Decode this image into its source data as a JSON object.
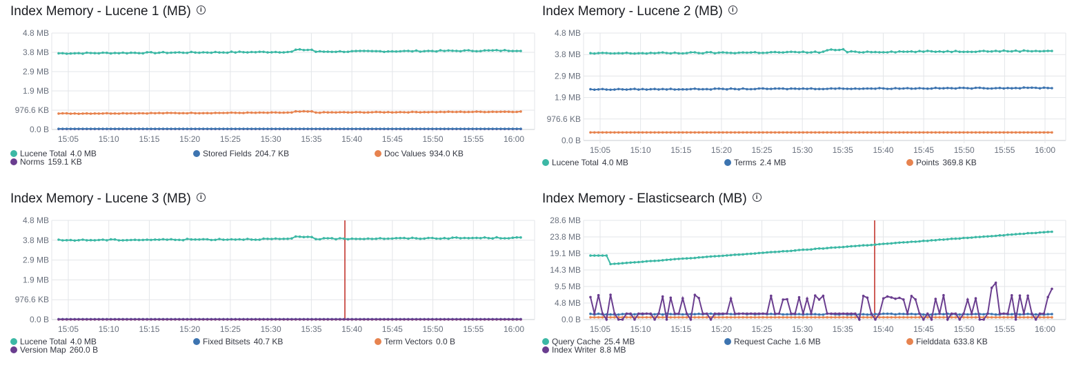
{
  "panels": [
    {
      "id": "lucene-1",
      "title": "Index Memory - Lucene 1 (MB)",
      "info_icon": "info-icon",
      "y_ticks": [
        "4.8 MB",
        "3.8 MB",
        "2.9 MB",
        "1.9 MB",
        "976.6 KB",
        "0.0 B"
      ],
      "x_ticks": [
        "15:05",
        "15:10",
        "15:15",
        "15:20",
        "15:25",
        "15:30",
        "15:35",
        "15:40",
        "15:45",
        "15:50",
        "15:55",
        "16:00"
      ],
      "legend": [
        {
          "label": "Lucene Total",
          "value": "4.0 MB",
          "color": "#3cb8a5"
        },
        {
          "label": "Stored Fields",
          "value": "204.7 KB",
          "color": "#3d74b0"
        },
        {
          "label": "Doc Values",
          "value": "934.0 KB",
          "color": "#e7834f"
        },
        {
          "label": "Norms",
          "value": "159.1 KB",
          "color": "#6a3d8f"
        }
      ]
    },
    {
      "id": "lucene-2",
      "title": "Index Memory - Lucene 2 (MB)",
      "info_icon": "info-icon",
      "y_ticks": [
        "4.8 MB",
        "3.8 MB",
        "2.9 MB",
        "1.9 MB",
        "976.6 KB",
        "0.0 B"
      ],
      "x_ticks": [
        "15:05",
        "15:10",
        "15:15",
        "15:20",
        "15:25",
        "15:30",
        "15:35",
        "15:40",
        "15:45",
        "15:50",
        "15:55",
        "16:00"
      ],
      "legend": [
        {
          "label": "Lucene Total",
          "value": "4.0 MB",
          "color": "#3cb8a5"
        },
        {
          "label": "Terms",
          "value": "2.4 MB",
          "color": "#3d74b0"
        },
        {
          "label": "Points",
          "value": "369.8 KB",
          "color": "#e7834f"
        }
      ]
    },
    {
      "id": "lucene-3",
      "title": "Index Memory - Lucene 3 (MB)",
      "info_icon": "info-icon",
      "y_ticks": [
        "4.8 MB",
        "3.8 MB",
        "2.9 MB",
        "1.9 MB",
        "976.6 KB",
        "0.0 B"
      ],
      "x_ticks": [
        "15:05",
        "15:10",
        "15:15",
        "15:20",
        "15:25",
        "15:30",
        "15:35",
        "15:40",
        "15:45",
        "15:50",
        "15:55",
        "16:00"
      ],
      "legend": [
        {
          "label": "Lucene Total",
          "value": "4.0 MB",
          "color": "#3cb8a5"
        },
        {
          "label": "Fixed Bitsets",
          "value": "40.7 KB",
          "color": "#3d74b0"
        },
        {
          "label": "Term Vectors",
          "value": "0.0 B",
          "color": "#e7834f"
        },
        {
          "label": "Version Map",
          "value": "260.0 B",
          "color": "#6a3d8f"
        }
      ]
    },
    {
      "id": "elasticsearch",
      "title": "Index Memory - Elasticsearch (MB)",
      "info_icon": "info-icon",
      "y_ticks": [
        "28.6 MB",
        "23.8 MB",
        "19.1 MB",
        "14.3 MB",
        "9.5 MB",
        "4.8 MB",
        "0.0 B"
      ],
      "x_ticks": [
        "15:05",
        "15:10",
        "15:15",
        "15:20",
        "15:25",
        "15:30",
        "15:35",
        "15:40",
        "15:45",
        "15:50",
        "15:55",
        "16:00"
      ],
      "legend": [
        {
          "label": "Query Cache",
          "value": "25.4 MB",
          "color": "#3cb8a5"
        },
        {
          "label": "Request Cache",
          "value": "1.6 MB",
          "color": "#3d74b0"
        },
        {
          "label": "Fielddata",
          "value": "633.8 KB",
          "color": "#e7834f"
        },
        {
          "label": "Index Writer",
          "value": "8.8 MB",
          "color": "#6a3d8f"
        }
      ]
    }
  ],
  "colors": {
    "grid": "#e3e5e8",
    "axis_text": "#69707d",
    "marker": "#bd271e"
  }
}
